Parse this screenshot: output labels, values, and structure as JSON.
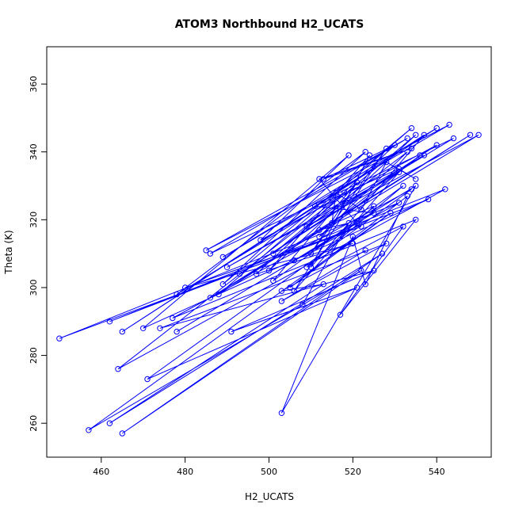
{
  "colors": {
    "series": "#0000ff",
    "axis": "#000000",
    "background": "#ffffff"
  },
  "chart_data": {
    "type": "scatter",
    "mode": "lines+markers",
    "marker": "open-circle",
    "title": "ATOM3 Northbound H2_UCATS",
    "xlabel": "H2_UCATS",
    "ylabel": "Theta (K)",
    "xlim": [
      447,
      553
    ],
    "ylim": [
      250,
      371
    ],
    "xticks": [
      460,
      480,
      500,
      520,
      540
    ],
    "yticks": [
      260,
      280,
      300,
      320,
      340,
      360
    ],
    "series": [
      {
        "x": [
          508,
          519,
          512,
          525,
          509,
          532,
          501,
          521,
          510,
          528,
          506,
          531,
          490,
          537,
          493,
          540,
          498,
          519,
          470,
          538,
          462,
          542,
          464,
          518,
          478,
          523,
          489,
          534,
          488,
          548,
          486,
          550,
          509,
          544,
          486,
          533,
          485,
          543,
          489,
          540,
          465,
          537,
          510,
          524,
          500,
          535,
          501,
          533,
          512,
          536,
          515,
          516,
          522,
          528,
          535,
          531,
          511,
          525,
          478,
          521,
          512,
          534,
          513,
          530,
          497,
          520,
          480,
          522,
          450,
          531,
          506,
          535,
          503,
          520,
          523,
          533,
          505,
          529,
          457,
          522,
          465,
          527,
          462,
          513,
          503,
          532,
          517,
          535,
          477,
          534,
          471,
          521,
          491,
          525,
          474,
          528,
          503,
          523
        ],
        "y": [
          295,
          319,
          317,
          324,
          306,
          330,
          302,
          331,
          310,
          341,
          299,
          334,
          306,
          339,
          304,
          342,
          314,
          339,
          288,
          326,
          290,
          329,
          276,
          328,
          298,
          340,
          301,
          347,
          298,
          345,
          297,
          345,
          318,
          344,
          310,
          344,
          311,
          348,
          309,
          347,
          287,
          345,
          306,
          339,
          305,
          345,
          310,
          340,
          315,
          339,
          319,
          328,
          323,
          337,
          332,
          335,
          324,
          322,
          287,
          319,
          332,
          341,
          332,
          342,
          304,
          313,
          300,
          318,
          285,
          325,
          308,
          330,
          263,
          315,
          301,
          327,
          300,
          322,
          258,
          305,
          257,
          310,
          260,
          301,
          299,
          318,
          292,
          320,
          291,
          329,
          273,
          300,
          287,
          305,
          288,
          313,
          296,
          311
        ]
      }
    ]
  }
}
